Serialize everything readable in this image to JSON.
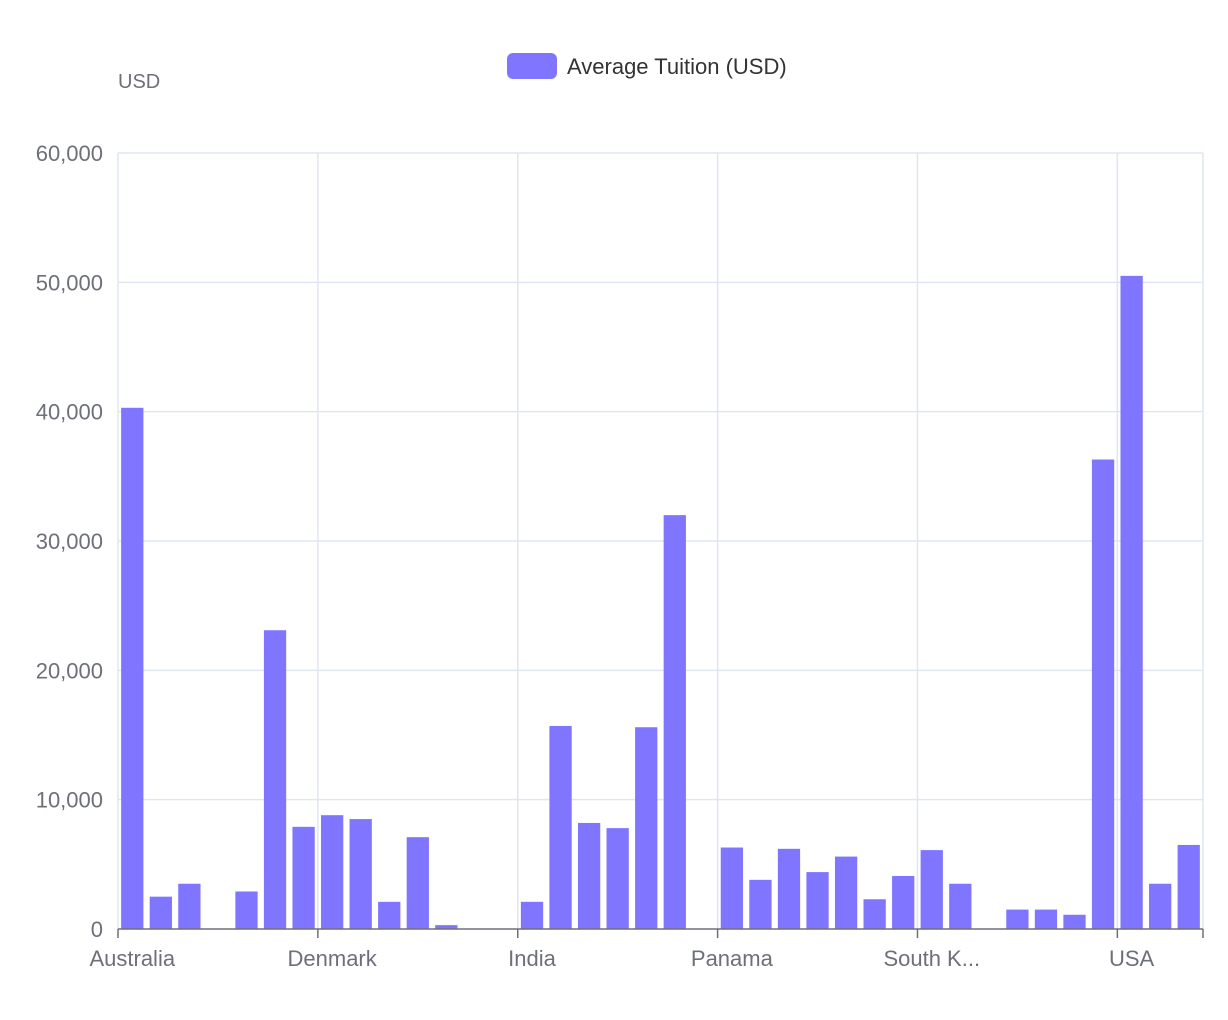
{
  "chart_data": {
    "type": "bar",
    "unit_label": "USD",
    "legend": {
      "label": "Average Tuition (USD)",
      "color": "#8075ff",
      "position": "top-center"
    },
    "ylim": [
      0,
      60000
    ],
    "yticks": [
      0,
      10000,
      20000,
      30000,
      40000,
      50000,
      60000
    ],
    "ytick_labels": [
      "0",
      "10,000",
      "20,000",
      "30,000",
      "40,000",
      "50,000",
      "60,000"
    ],
    "visible_category_labels": [
      {
        "index": 0,
        "label": "Australia"
      },
      {
        "index": 7,
        "label": "Denmark"
      },
      {
        "index": 14,
        "label": "India"
      },
      {
        "index": 21,
        "label": "Panama"
      },
      {
        "index": 28,
        "label": "South K..."
      },
      {
        "index": 35,
        "label": "USA"
      }
    ],
    "grid": true,
    "bar_color": "#8075ff",
    "values": [
      40300,
      2500,
      3500,
      0,
      2900,
      23100,
      7900,
      8800,
      8500,
      2100,
      7100,
      300,
      0,
      0,
      2100,
      15700,
      8200,
      7800,
      15600,
      32000,
      0,
      6300,
      3800,
      6200,
      4400,
      5600,
      2300,
      4100,
      6100,
      3500,
      0,
      1500,
      1500,
      1100,
      36300,
      50500,
      3500,
      6500
    ]
  }
}
